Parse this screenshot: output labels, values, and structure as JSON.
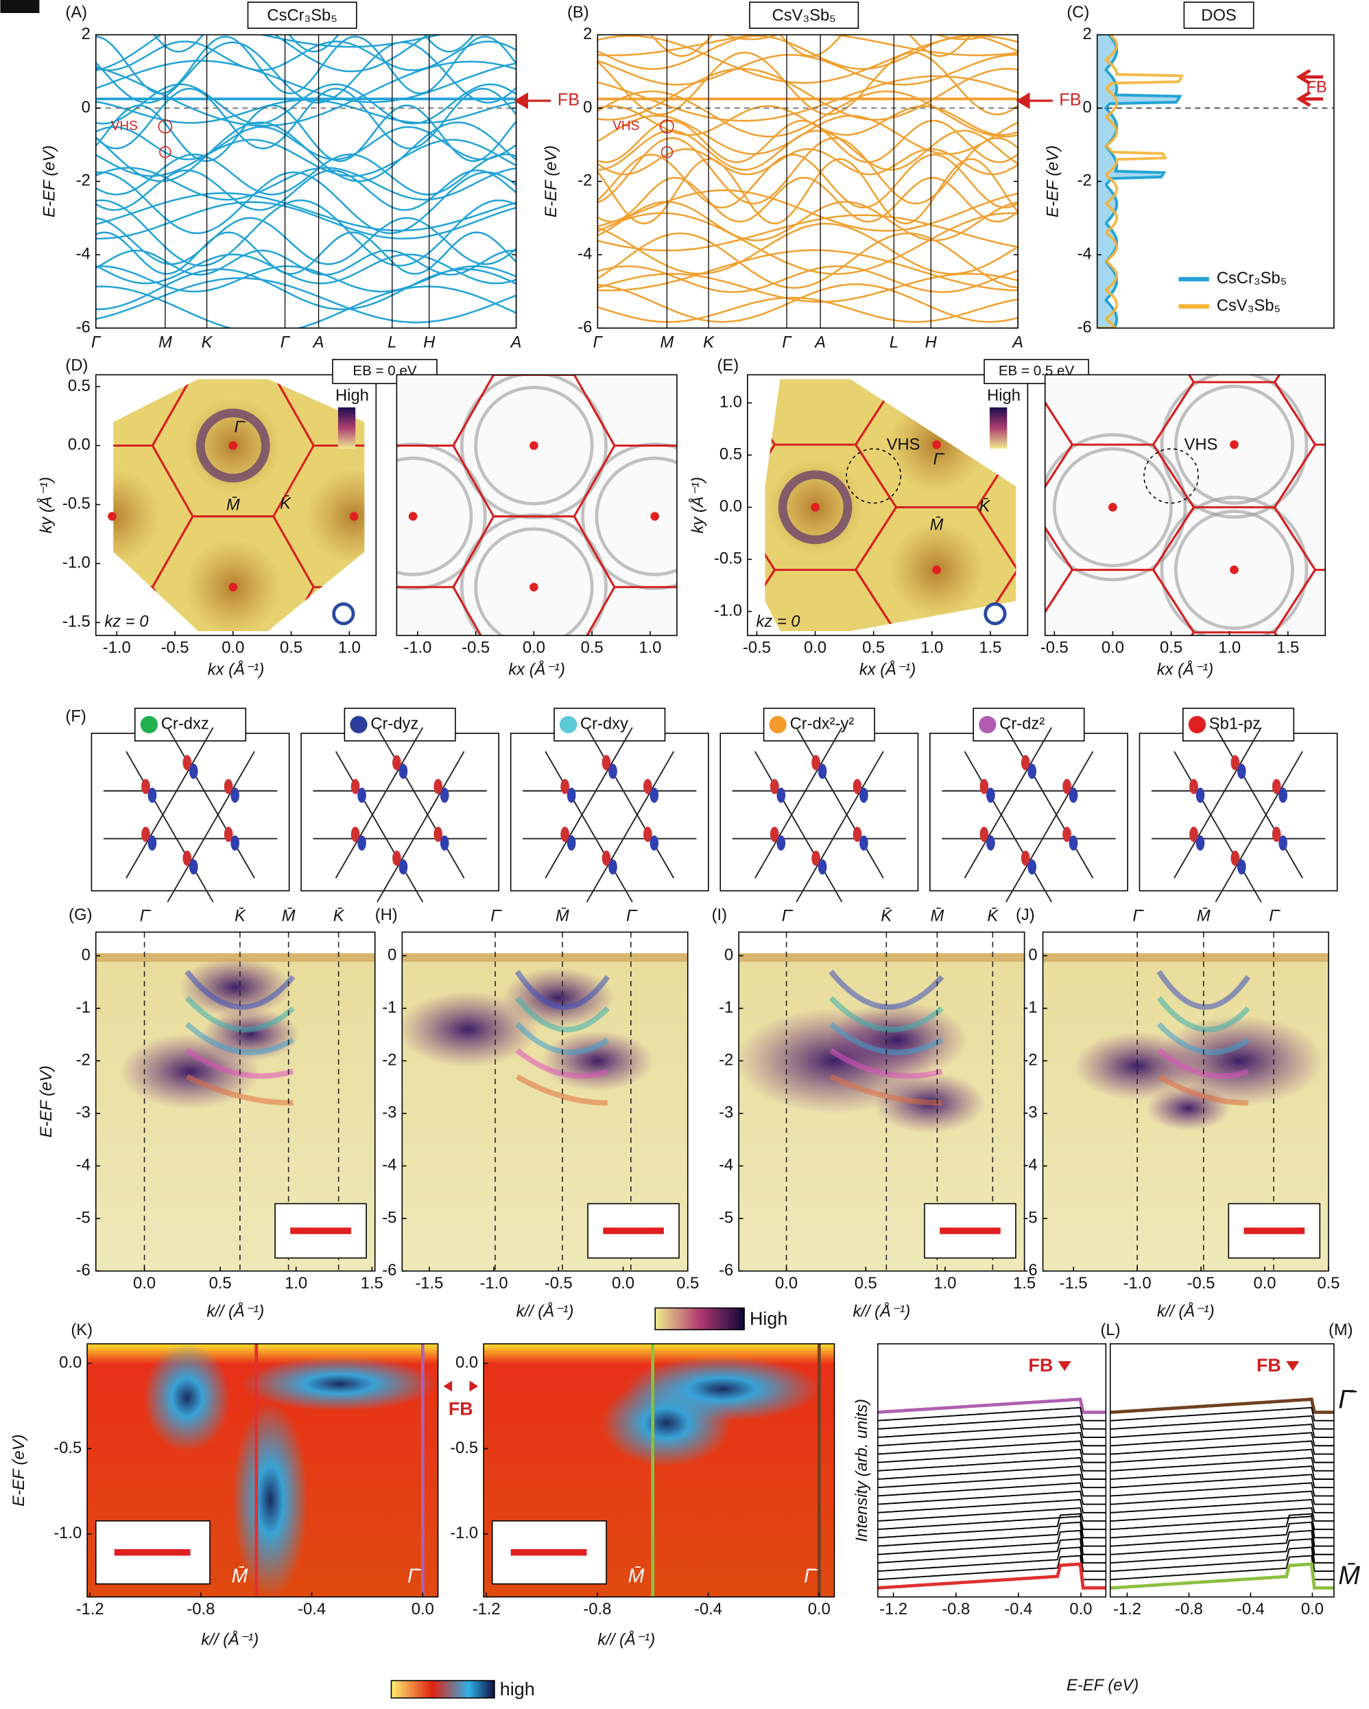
{
  "A": {
    "letter": "(A)",
    "title": "CsCr₃Sb₅",
    "ylabel": "E-EF (eV)",
    "ylim": [
      -6,
      2
    ],
    "yticks": [
      -6,
      -4,
      -2,
      0,
      2
    ],
    "kpath": [
      "Γ",
      "M",
      "K",
      "Γ",
      "A",
      "L",
      "H",
      "A"
    ],
    "arrow_label": "FB",
    "vhs": "VHS",
    "color": "#23a3d6"
  },
  "B": {
    "letter": "(B)",
    "title": "CsV₃Sb₅",
    "ylabel": "E-EF (eV)",
    "ylim": [
      -6,
      2
    ],
    "yticks": [
      -6,
      -4,
      -2,
      0,
      2
    ],
    "kpath": [
      "Γ",
      "M",
      "K",
      "Γ",
      "A",
      "L",
      "H",
      "A"
    ],
    "arrow_label": "FB",
    "vhs": "VHS",
    "color": "#f0a030"
  },
  "C": {
    "letter": "(C)",
    "title": "DOS",
    "ylabel": "E-EF (eV)",
    "ylim": [
      -6,
      2
    ],
    "yticks": [
      -6,
      -4,
      -2,
      0,
      2
    ],
    "arrow_label": "FB",
    "series": [
      {
        "name": "CsCr₃Sb₅",
        "color": "#23a3d6"
      },
      {
        "name": "CsV₃Sb₅",
        "color": "#f5b335"
      }
    ]
  },
  "D": {
    "letter": "(D)",
    "eb": "EB = 0 eV",
    "high": "High",
    "kz": "kz = 0",
    "xlabel": "kx (Å⁻¹)",
    "ylabel": "ky (Å⁻¹)",
    "xlim": [
      -1.18,
      1.23
    ],
    "ylim": [
      -1.61,
      0.6
    ],
    "xticks": [
      {
        "value": -1,
        "label": "-1.0"
      },
      -0.5,
      {
        "value": 0,
        "label": "0.0"
      },
      0.5,
      {
        "value": 1,
        "label": "1.0"
      }
    ],
    "yticks": [
      -1.5,
      {
        "value": -1,
        "label": "-1.0"
      },
      -0.5,
      {
        "value": 0,
        "label": "0.0"
      },
      0.5
    ],
    "points": [
      "Γ̄",
      "M̄",
      "K̄"
    ]
  },
  "E": {
    "letter": "(E)",
    "eb": "EB = 0.5 eV",
    "high": "High",
    "kz": "kz = 0",
    "vhs": "VHS",
    "xlabel": "kx (Å⁻¹)",
    "ylabel": "ky (Å⁻¹)",
    "xlim": [
      -0.58,
      1.82
    ],
    "ylim": [
      -1.23,
      1.27
    ],
    "xticks": [
      -0.5,
      {
        "value": 0,
        "label": "0.0"
      },
      0.5,
      {
        "value": 1,
        "label": "1.0"
      },
      1.5
    ],
    "yticks": [
      {
        "value": -1,
        "label": "-1.0"
      },
      -0.5,
      {
        "value": 0,
        "label": "0.0"
      },
      0.5,
      {
        "value": 1,
        "label": "1.0"
      }
    ],
    "points": [
      "Γ̄",
      "M̄",
      "K̄"
    ]
  },
  "F": {
    "letter": "(F)",
    "orbitals": [
      "Cr-dxz",
      "Cr-dyz",
      "Cr-dxy",
      "Cr-dx²-y²",
      "Cr-dz²",
      "Sb1-pz"
    ],
    "colors": [
      "#20b050",
      "#2a3d9a",
      "#5ccbd8",
      "#f39a2a",
      "#b05cb0",
      "#e02020"
    ]
  },
  "G": {
    "letter": "(G)",
    "kpoints": [
      "Γ̄",
      "K̄",
      "M̄",
      "K̄"
    ],
    "ylabel": "E-EF (eV)",
    "xlabel": "k// (Å⁻¹)",
    "xlim": [
      -0.32,
      1.52
    ],
    "ylim": [
      -6,
      0.45
    ],
    "yticks": [
      -6,
      -5,
      -4,
      -3,
      -2,
      -1,
      0
    ],
    "xticks": [
      {
        "value": 0,
        "label": "0.0"
      },
      0.5,
      {
        "value": 1,
        "label": "1.0"
      },
      1.5
    ]
  },
  "H": {
    "letter": "(H)",
    "kpoints": [
      "Γ̄",
      "M̄",
      "Γ̄"
    ],
    "xlabel": "k// (Å⁻¹)",
    "xlim": [
      -1.71,
      0.5
    ],
    "ylim": [
      -6,
      0.45
    ],
    "yticks": [
      -6,
      -5,
      -4,
      -3,
      -2,
      -1,
      0
    ],
    "xticks": [
      -1.5,
      {
        "value": -1,
        "label": "-1.0"
      },
      -0.5,
      {
        "value": 0,
        "label": "0.0"
      },
      0.5
    ]
  },
  "I": {
    "letter": "(I)",
    "kpoints": [
      "Γ̄",
      "K̄",
      "M̄",
      "K̄"
    ],
    "xlabel": "k// (Å⁻¹)",
    "xlim": [
      -0.3,
      1.5
    ],
    "ylim": [
      -6,
      0.45
    ],
    "yticks": [
      -6,
      -5,
      -4,
      -3,
      -2,
      -1,
      0
    ],
    "xticks": [
      {
        "value": 0,
        "label": "0.0"
      },
      0.5,
      {
        "value": 1,
        "label": "1.0"
      },
      1.5
    ]
  },
  "J": {
    "letter": "(J)",
    "kpoints": [
      "Γ̄",
      "M̄",
      "Γ̄"
    ],
    "xlabel": "k// (Å⁻¹)",
    "xlim": [
      -1.74,
      0.5
    ],
    "ylim": [
      -6,
      0.45
    ],
    "yticks": [
      -6,
      -5,
      -4,
      -3,
      -2,
      -1,
      0
    ],
    "xticks": [
      -1.5,
      {
        "value": -1,
        "label": "-1.0"
      },
      -0.5,
      {
        "value": 0,
        "label": "0.0"
      },
      0.5
    ]
  },
  "colorbar_GJ": "High",
  "K": {
    "letter": "(K)",
    "ylabel": "E-EF (eV)",
    "xlabel": "k// (Å⁻¹)",
    "fb": "FB",
    "points": [
      "M̄",
      "Γ̄"
    ],
    "colorbar": "high",
    "xlim": [
      -1.21,
      0.055
    ],
    "ylim": [
      -1.37,
      0.115
    ],
    "xticks": [
      -1.2,
      -0.8,
      -0.4,
      {
        "value": 0,
        "label": "0.0"
      }
    ],
    "yticks": [
      {
        "value": -1,
        "label": "-1.0"
      },
      -0.5,
      {
        "value": 0,
        "label": "0.0"
      }
    ]
  },
  "L": {
    "letter": "(L)",
    "fb": "FB",
    "ylabel": "Intensity (arb. units)",
    "xlim": [
      -1.3,
      0.16
    ],
    "xticks": [
      -1.2,
      -0.8,
      -0.4,
      {
        "value": 0,
        "label": "0.0"
      }
    ]
  },
  "M": {
    "letter": "(M)",
    "fb": "FB",
    "xlabel": "E-EF (eV)",
    "points": [
      "Γ̄",
      "M̄"
    ],
    "xlim": [
      -1.31,
      0.14
    ],
    "xticks": [
      -1.2,
      -0.8,
      -0.4,
      {
        "value": 0,
        "label": "0.0"
      }
    ]
  }
}
